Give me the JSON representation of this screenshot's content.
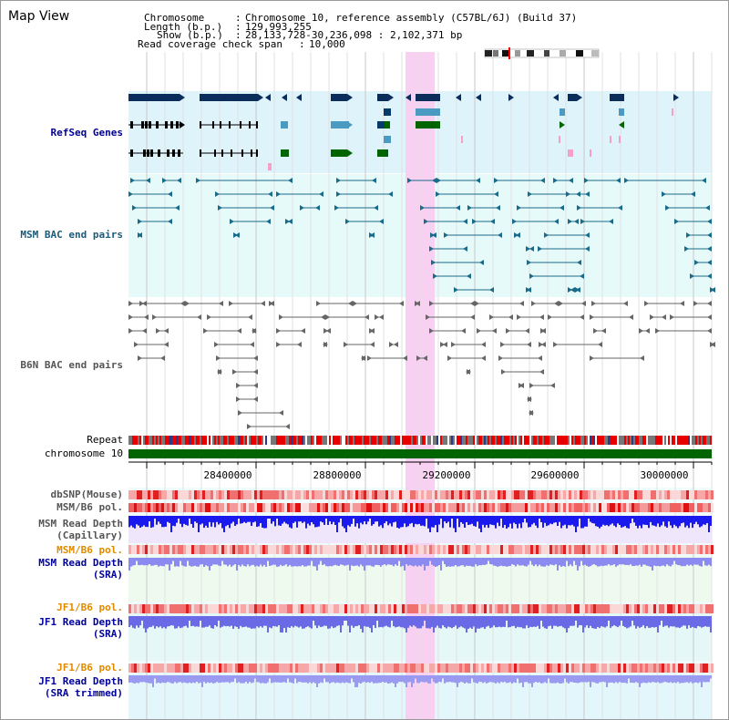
{
  "title": "Map View",
  "header": {
    "chromosome_label": "Chromosome",
    "chromosome_value": "Chromosome 10, reference assembly (C57BL/6J) (Build 37)",
    "length_label": "Length (b.p.)",
    "length_value": "129,993,255",
    "show_label": "Show (b.p.)",
    "show_value": "28,133,728-30,236,098 : 2,102,371 bp",
    "coverage_label": "Read coverage check span",
    "coverage_value": "10,000"
  },
  "tracks": {
    "refseq": "RefSeq Genes",
    "msm_bac": "MSM BAC end pairs",
    "b6n_bac": "B6N BAC end pairs",
    "repeat": "Repeat",
    "chromosome": "chromosome 10",
    "dbsnp": "dbSNP(Mouse)",
    "msm_b6_pol_1": "MSM/B6 pol.",
    "msm_depth_cap_1": "MSM Read Depth",
    "msm_depth_cap_2": "(Capillary)",
    "msm_b6_pol_2": "MSM/B6 pol.",
    "msm_depth_sra_1": "MSM Read Depth",
    "msm_depth_sra_2": "(SRA)",
    "jf1_b6_pol_1": "JF1/B6 pol.",
    "jf1_depth_sra_1": "JF1 Read Depth",
    "jf1_depth_sra_2": "(SRA)",
    "jf1_b6_pol_2": "JF1/B6 pol.",
    "jf1_depth_trim_1": "JF1 Read Depth",
    "jf1_depth_trim_2": "(SRA trimmed)"
  },
  "axis": {
    "ticks": [
      "28400000",
      "28800000",
      "29200000",
      "29600000",
      "30000000"
    ]
  },
  "colors": {
    "refseq_bg": "#dff3fb",
    "bac_bg": "#e6fafa",
    "highlight": "#f7d0f2",
    "dark_navy": "#0b2d5c",
    "green": "#006400",
    "msm_line": "#1a6a8a",
    "b6n_line": "#666666"
  }
}
